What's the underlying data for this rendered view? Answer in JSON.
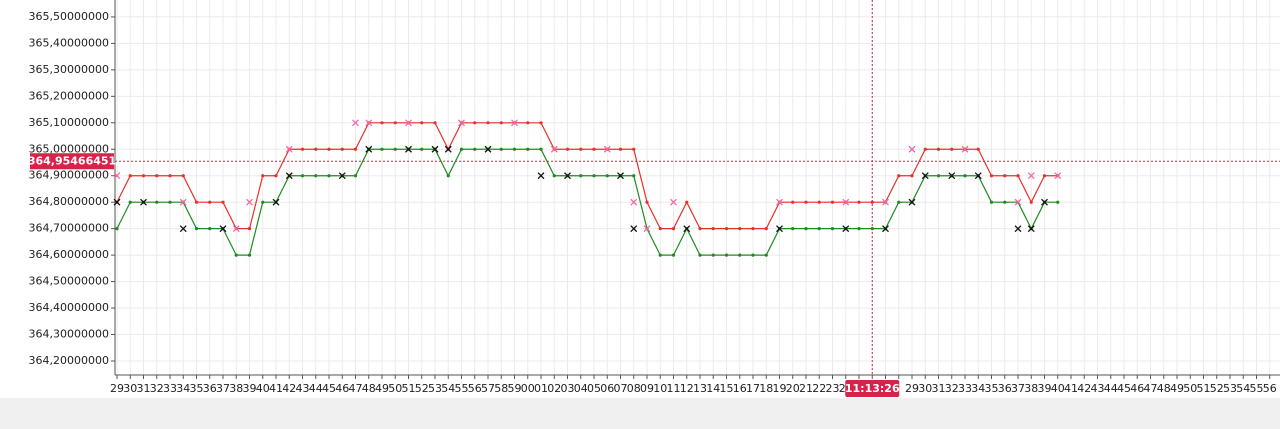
{
  "chart_data": {
    "type": "line",
    "categories": [
      "29",
      "30",
      "31",
      "32",
      "33",
      "34",
      "35",
      "36",
      "37",
      "38",
      "39",
      "40",
      "41",
      "42",
      "43",
      "44",
      "45",
      "46",
      "47",
      "48",
      "49",
      "50",
      "51",
      "52",
      "53",
      "54",
      "55",
      "56",
      "57",
      "58",
      "59",
      "00",
      "01",
      "02",
      "03",
      "04",
      "05",
      "06",
      "07",
      "08",
      "09",
      "10",
      "11",
      "12",
      "13",
      "14",
      "15",
      "16",
      "17",
      "18",
      "19",
      "20",
      "21",
      "22",
      "23",
      "24",
      null,
      null,
      null,
      null,
      "29",
      "30",
      "31",
      "32",
      "33",
      "34",
      "35",
      "36",
      "37",
      "38",
      "39",
      "40",
      "41",
      "42",
      "43",
      "44",
      "45",
      "46",
      "47",
      "48",
      "49",
      "50",
      "51",
      "52",
      "53",
      "54",
      "55",
      "56"
    ],
    "series": [
      {
        "color": "#e8302a",
        "values": [
          364.8,
          364.9,
          364.9,
          364.9,
          364.9,
          364.9,
          364.8,
          364.8,
          364.8,
          364.7,
          364.7,
          364.9,
          364.9,
          365.0,
          365.0,
          365.0,
          365.0,
          365.0,
          365.0,
          365.1,
          365.1,
          365.1,
          365.1,
          365.1,
          365.1,
          365.0,
          365.1,
          365.1,
          365.1,
          365.1,
          365.1,
          365.1,
          365.1,
          365.0,
          365.0,
          365.0,
          365.0,
          365.0,
          365.0,
          365.0,
          364.8,
          364.7,
          364.7,
          364.8,
          364.7,
          364.7,
          364.7,
          364.7,
          364.7,
          364.7,
          364.8,
          364.8,
          364.8,
          364.8,
          364.8,
          364.8,
          364.8,
          364.8,
          364.8,
          364.9,
          364.9,
          365.0,
          365.0,
          365.0,
          365.0,
          365.0,
          364.9,
          364.9,
          364.9,
          364.8,
          364.9,
          364.9,
          null,
          null,
          null,
          null,
          null,
          null,
          null,
          null,
          null,
          null,
          null,
          null,
          null,
          null,
          null,
          null
        ]
      },
      {
        "color": "#1f8a1f",
        "values": [
          364.7,
          364.8,
          364.8,
          364.8,
          364.8,
          364.8,
          364.7,
          364.7,
          364.7,
          364.6,
          364.6,
          364.8,
          364.8,
          364.9,
          364.9,
          364.9,
          364.9,
          364.9,
          364.9,
          365.0,
          365.0,
          365.0,
          365.0,
          365.0,
          365.0,
          364.9,
          365.0,
          365.0,
          365.0,
          365.0,
          365.0,
          365.0,
          365.0,
          364.9,
          364.9,
          364.9,
          364.9,
          364.9,
          364.9,
          364.9,
          364.7,
          364.6,
          364.6,
          364.7,
          364.6,
          364.6,
          364.6,
          364.6,
          364.6,
          364.6,
          364.7,
          364.7,
          364.7,
          364.7,
          364.7,
          364.7,
          364.7,
          364.7,
          364.7,
          364.8,
          364.8,
          364.9,
          364.9,
          364.9,
          364.9,
          364.9,
          364.8,
          364.8,
          364.8,
          364.7,
          364.8,
          364.8,
          null,
          null,
          null,
          null,
          null,
          null,
          null,
          null,
          null,
          null,
          null,
          null,
          null,
          null,
          null,
          null
        ]
      }
    ],
    "markers": [
      {
        "color": "#f06aa8",
        "values": [
          364.9,
          null,
          null,
          null,
          null,
          364.8,
          null,
          null,
          null,
          364.7,
          364.8,
          null,
          null,
          365.0,
          null,
          null,
          null,
          null,
          365.1,
          365.1,
          null,
          null,
          365.1,
          null,
          null,
          null,
          365.1,
          null,
          null,
          null,
          365.1,
          null,
          null,
          365.0,
          null,
          null,
          null,
          365.0,
          null,
          364.8,
          364.7,
          null,
          364.8,
          null,
          null,
          null,
          null,
          null,
          null,
          null,
          364.8,
          null,
          null,
          null,
          null,
          364.8,
          null,
          null,
          364.8,
          null,
          365.0,
          null,
          null,
          null,
          365.0,
          null,
          null,
          null,
          364.8,
          364.9,
          null,
          364.9,
          null,
          null,
          null,
          null,
          null,
          null,
          null,
          null,
          null,
          null,
          null,
          null,
          null,
          null,
          null,
          null
        ]
      },
      {
        "color": "#111111",
        "values": [
          364.8,
          null,
          364.8,
          null,
          null,
          364.7,
          null,
          null,
          364.7,
          null,
          null,
          null,
          364.8,
          364.9,
          null,
          null,
          null,
          364.9,
          null,
          365.0,
          null,
          null,
          365.0,
          null,
          365.0,
          365.0,
          null,
          null,
          365.0,
          null,
          null,
          null,
          364.9,
          null,
          364.9,
          null,
          null,
          null,
          364.9,
          364.7,
          null,
          null,
          null,
          364.7,
          null,
          null,
          null,
          null,
          null,
          null,
          364.7,
          null,
          null,
          null,
          null,
          364.7,
          null,
          null,
          364.7,
          null,
          364.8,
          364.9,
          null,
          364.9,
          null,
          364.9,
          null,
          null,
          364.7,
          364.7,
          364.8,
          null,
          null,
          null,
          null,
          null,
          null,
          null,
          null,
          null,
          null,
          null,
          null,
          null,
          null,
          null,
          null,
          null
        ]
      }
    ],
    "ylim": [
      364.147,
      365.564
    ],
    "yticks": [
      {
        "value": 364.2,
        "label": "364,20000000"
      },
      {
        "value": 364.3,
        "label": "364,30000000"
      },
      {
        "value": 364.4,
        "label": "364,40000000"
      },
      {
        "value": 364.5,
        "label": "364,50000000"
      },
      {
        "value": 364.6,
        "label": "364,60000000"
      },
      {
        "value": 364.7,
        "label": "364,70000000"
      },
      {
        "value": 364.8,
        "label": "364,80000000"
      },
      {
        "value": 364.9,
        "label": "364,90000000"
      },
      {
        "value": 365.0,
        "label": "365,00000000"
      },
      {
        "value": 365.1,
        "label": "365,10000000"
      },
      {
        "value": 365.2,
        "label": "365,20000000"
      },
      {
        "value": 365.3,
        "label": "365,30000000"
      },
      {
        "value": 365.4,
        "label": "365,40000000"
      },
      {
        "value": 365.5,
        "label": "365,50000000"
      }
    ],
    "grid": true,
    "crosshair_y": {
      "value": 364.95466451,
      "label": "364,95466451"
    },
    "crosshair_x": "11:13:26",
    "crosshair_color": "#d9224a"
  }
}
